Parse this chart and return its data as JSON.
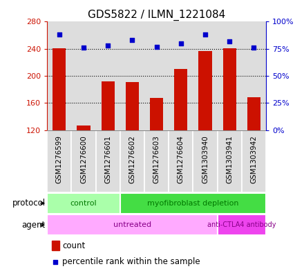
{
  "title": "GDS5822 / ILMN_1221084",
  "samples": [
    "GSM1276599",
    "GSM1276600",
    "GSM1276601",
    "GSM1276602",
    "GSM1276603",
    "GSM1276604",
    "GSM1303940",
    "GSM1303941",
    "GSM1303942"
  ],
  "counts": [
    241,
    127,
    192,
    191,
    167,
    210,
    237,
    241,
    168
  ],
  "percentiles": [
    88,
    76,
    78,
    83,
    77,
    80,
    88,
    82,
    76
  ],
  "ymin": 120,
  "ymax": 280,
  "yticks": [
    120,
    160,
    200,
    240,
    280
  ],
  "right_yticks": [
    0,
    25,
    50,
    75,
    100
  ],
  "bar_color": "#CC1100",
  "dot_color": "#0000CC",
  "bar_bottom": 120,
  "protocol_color_light": "#AAFFAA",
  "protocol_color_dark": "#44DD44",
  "agent_color_untreated": "#FFAAFF",
  "agent_color_anti": "#EE44EE",
  "label_color_protocol": "#007700",
  "label_color_agent": "#880088",
  "bg_color": "#DDDDDD",
  "title_fontsize": 11
}
